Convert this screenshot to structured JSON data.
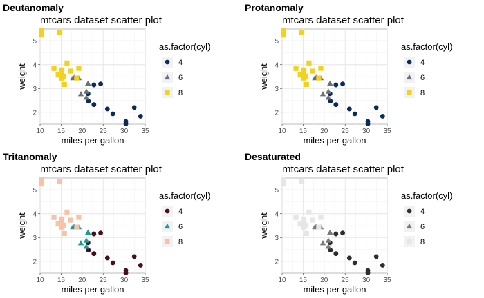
{
  "figure": {
    "panels": [
      {
        "label": "Deutanomaly",
        "colors": {
          "4": "#0b2a5c",
          "6": "#6e7079",
          "8": "#f2d21c"
        }
      },
      {
        "label": "Protanomaly",
        "colors": {
          "4": "#0b2a5c",
          "6": "#6e7079",
          "8": "#f2d21c"
        }
      },
      {
        "label": "Tritanomaly",
        "colors": {
          "4": "#4a0d1f",
          "6": "#1b9a9a",
          "8": "#f7c2a8"
        }
      },
      {
        "label": "Desaturated",
        "colors": {
          "4": "#2e2e2e",
          "6": "#7a7a7a",
          "8": "#e6e6e6"
        }
      }
    ]
  },
  "chart_data": {
    "type": "scatter",
    "title": "mtcars dataset scatter plot",
    "xlabel": "miles per gallon",
    "ylabel": "weight",
    "xlim": [
      10,
      35
    ],
    "ylim": [
      1.5,
      5.5
    ],
    "xticks": [
      10,
      15,
      20,
      25,
      30,
      35
    ],
    "yticks": [
      2,
      3,
      4,
      5
    ],
    "grid": true,
    "legend": {
      "title": "as.factor(cyl)",
      "placement": "right",
      "entries": [
        {
          "label": "4",
          "shape": "circle"
        },
        {
          "label": "6",
          "shape": "triangle"
        },
        {
          "label": "8",
          "shape": "square"
        }
      ]
    },
    "series": [
      {
        "name": "4",
        "shape": "circle",
        "x": [
          22.8,
          24.4,
          22.8,
          32.4,
          30.4,
          33.9,
          21.5,
          27.3,
          26.0,
          30.4,
          21.4
        ],
        "y": [
          2.32,
          3.19,
          3.15,
          2.2,
          1.615,
          1.835,
          2.465,
          1.935,
          2.14,
          1.513,
          2.78
        ]
      },
      {
        "name": "6",
        "shape": "triangle",
        "x": [
          21.0,
          21.0,
          21.4,
          18.1,
          19.2,
          17.8,
          19.7
        ],
        "y": [
          2.62,
          2.875,
          3.215,
          3.46,
          3.44,
          3.44,
          2.77
        ]
      },
      {
        "name": "8",
        "shape": "square",
        "x": [
          18.7,
          14.3,
          16.4,
          17.3,
          15.2,
          10.4,
          10.4,
          14.7,
          15.5,
          15.2,
          13.3,
          19.2,
          15.8,
          15.0
        ],
        "y": [
          3.44,
          3.57,
          4.07,
          3.73,
          3.78,
          5.25,
          5.424,
          5.345,
          3.52,
          3.435,
          3.84,
          3.845,
          3.17,
          3.57
        ]
      }
    ]
  }
}
